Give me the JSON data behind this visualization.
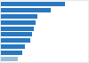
{
  "values": [
    73,
    57,
    42,
    40,
    38,
    36,
    34,
    28,
    24,
    19
  ],
  "bar_color": "#2878c0",
  "bar_color_last": "#9abdd8",
  "background_color": "#e8e8e8",
  "plot_background": "#ffffff",
  "grid_color": "#cccccc",
  "figsize": [
    1.0,
    0.71
  ],
  "dpi": 100
}
